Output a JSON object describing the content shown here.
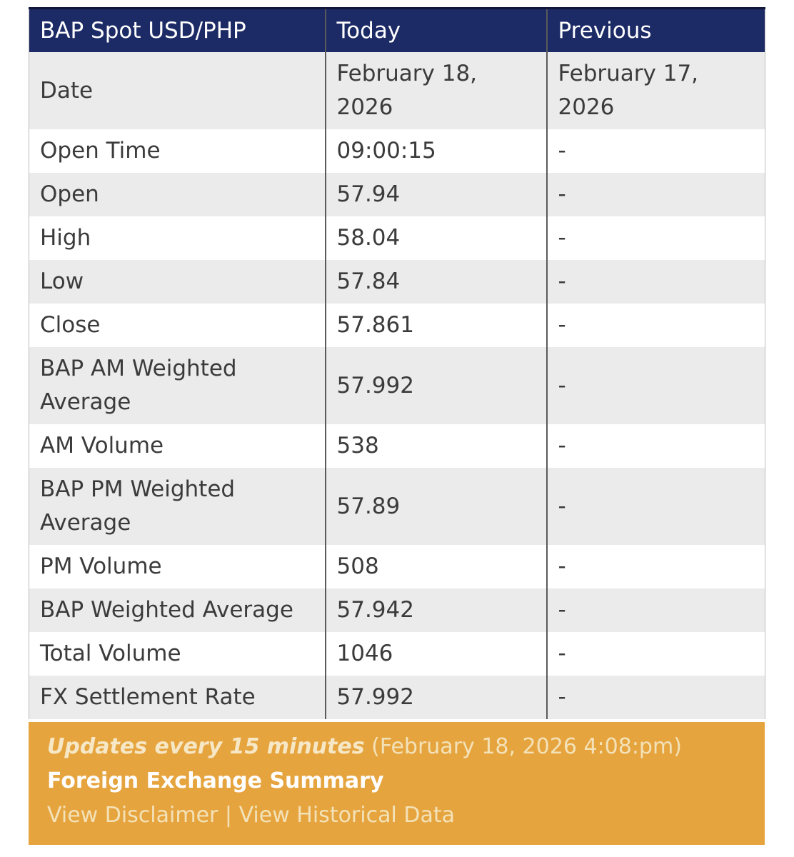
{
  "table": {
    "columns": [
      "BAP Spot USD/PHP",
      "Today",
      "Previous"
    ],
    "rows": [
      {
        "label": "Date",
        "today": "February 18, 2026",
        "previous": "February 17, 2026"
      },
      {
        "label": "Open Time",
        "today": "09:00:15",
        "previous": "-"
      },
      {
        "label": "Open",
        "today": "57.94",
        "previous": "-"
      },
      {
        "label": "High",
        "today": "58.04",
        "previous": "-"
      },
      {
        "label": "Low",
        "today": "57.84",
        "previous": "-"
      },
      {
        "label": "Close",
        "today": "57.861",
        "previous": "-"
      },
      {
        "label": "BAP AM Weighted Average",
        "today": "57.992",
        "previous": "-"
      },
      {
        "label": "AM Volume",
        "today": "538",
        "previous": "-"
      },
      {
        "label": "BAP PM Weighted Average",
        "today": "57.89",
        "previous": "-"
      },
      {
        "label": "PM Volume",
        "today": "508",
        "previous": "-"
      },
      {
        "label": "BAP Weighted Average",
        "today": "57.942",
        "previous": "-"
      },
      {
        "label": "Total Volume",
        "today": "1046",
        "previous": "-"
      },
      {
        "label": "FX Settlement Rate",
        "today": "57.992",
        "previous": "-"
      }
    ]
  },
  "footer": {
    "updates_note": "Updates every 15 minutes",
    "updated_at": "(February 18, 2026 4:08:pm)",
    "summary_link": "Foreign Exchange Summary",
    "disclaimer_link": "View Disclaimer",
    "separator": "|",
    "historical_link": "View Historical Data"
  },
  "colors": {
    "header_bg": "#1c2a66",
    "header_top_border": "#11183a",
    "header_text": "#ffffff",
    "row_alt_bg": "#ebebeb",
    "row_bg": "#ffffff",
    "body_text": "#3b3b3b",
    "divider": "#5a5a5a",
    "outer_border": "#bdbdbd",
    "footer_bg": "#e6a43f",
    "footer_cream": "#f6e8c6",
    "footer_cream_muted": "#f3e2b8",
    "footer_white": "#ffffff"
  }
}
